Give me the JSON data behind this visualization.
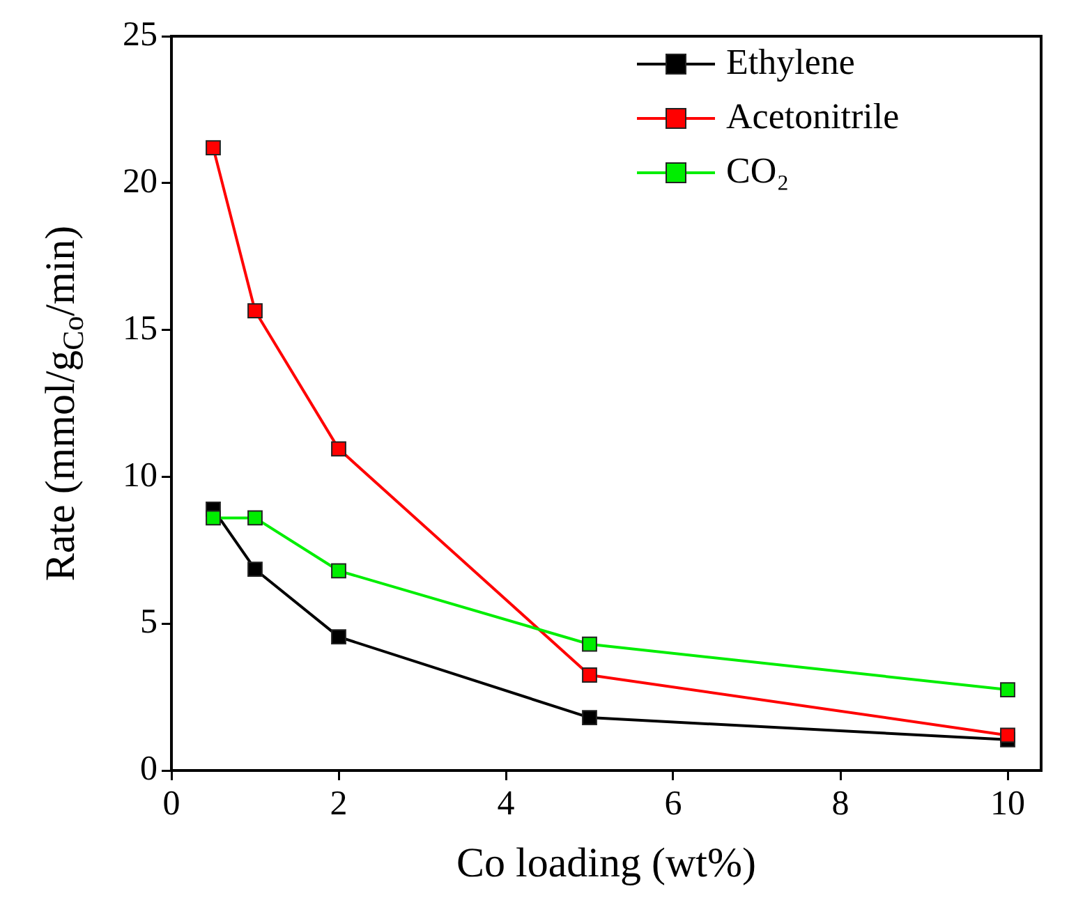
{
  "chart_data": {
    "type": "line",
    "xlabel": "Co loading (wt%)",
    "ylabel": "Rate (mmol/g$_{Co}$/min)",
    "x": [
      0.5,
      1,
      2,
      5,
      10
    ],
    "series": [
      {
        "name": "Ethylene",
        "color": "#000000",
        "values": [
          8.9,
          6.85,
          4.55,
          1.8,
          1.05
        ]
      },
      {
        "name": "Acetonitrile",
        "color": "#ff0000",
        "values": [
          21.2,
          15.65,
          10.95,
          3.25,
          1.2
        ]
      },
      {
        "name": "CO₂",
        "color": "#00ee00",
        "values": [
          8.6,
          8.6,
          6.8,
          4.3,
          2.75
        ]
      }
    ],
    "xlim": [
      0,
      10.4
    ],
    "xticks": [
      0,
      2,
      4,
      6,
      8,
      10
    ],
    "ylim": [
      0,
      25
    ],
    "yticks": [
      0,
      5,
      10,
      15,
      20,
      25
    ],
    "grid": false,
    "legend": "top right",
    "marker": "square",
    "line_style": "solid"
  }
}
